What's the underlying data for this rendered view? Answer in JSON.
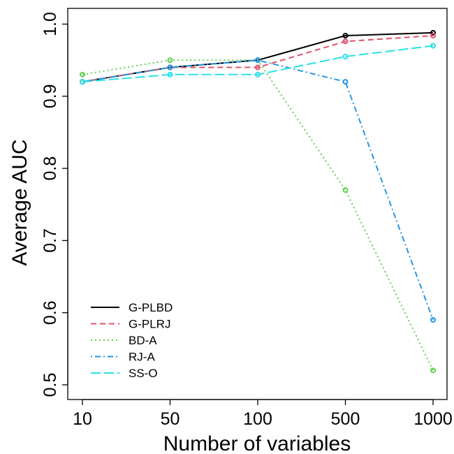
{
  "chart_data": {
    "type": "line",
    "title": "",
    "xlabel": "Number of variables",
    "ylabel": "Average AUC",
    "categories": [
      "10",
      "50",
      "100",
      "500",
      "1000"
    ],
    "yticks": [
      "0.5",
      "0.6",
      "0.7",
      "0.8",
      "0.9",
      "1.0"
    ],
    "ylim": [
      0.48,
      1.02
    ],
    "grid": false,
    "legend_position": "bottom-left",
    "series": [
      {
        "name": "G-PLBD",
        "color": "#000000",
        "dash": "solid",
        "values": [
          0.92,
          0.94,
          0.95,
          0.984,
          0.988
        ]
      },
      {
        "name": "G-PLRJ",
        "color": "#DF536B",
        "dash": "dashed",
        "values": [
          0.92,
          0.94,
          0.94,
          0.976,
          0.984
        ]
      },
      {
        "name": "BD-A",
        "color": "#61D04F",
        "dash": "dotted",
        "values": [
          0.93,
          0.95,
          0.95,
          0.77,
          0.52
        ]
      },
      {
        "name": "RJ-A",
        "color": "#2297E6",
        "dash": "dotdash",
        "values": [
          0.92,
          0.94,
          0.95,
          0.92,
          0.59
        ]
      },
      {
        "name": "SS-O",
        "color": "#28E2E5",
        "dash": "longdash",
        "values": [
          0.92,
          0.93,
          0.93,
          0.955,
          0.97
        ]
      }
    ]
  }
}
